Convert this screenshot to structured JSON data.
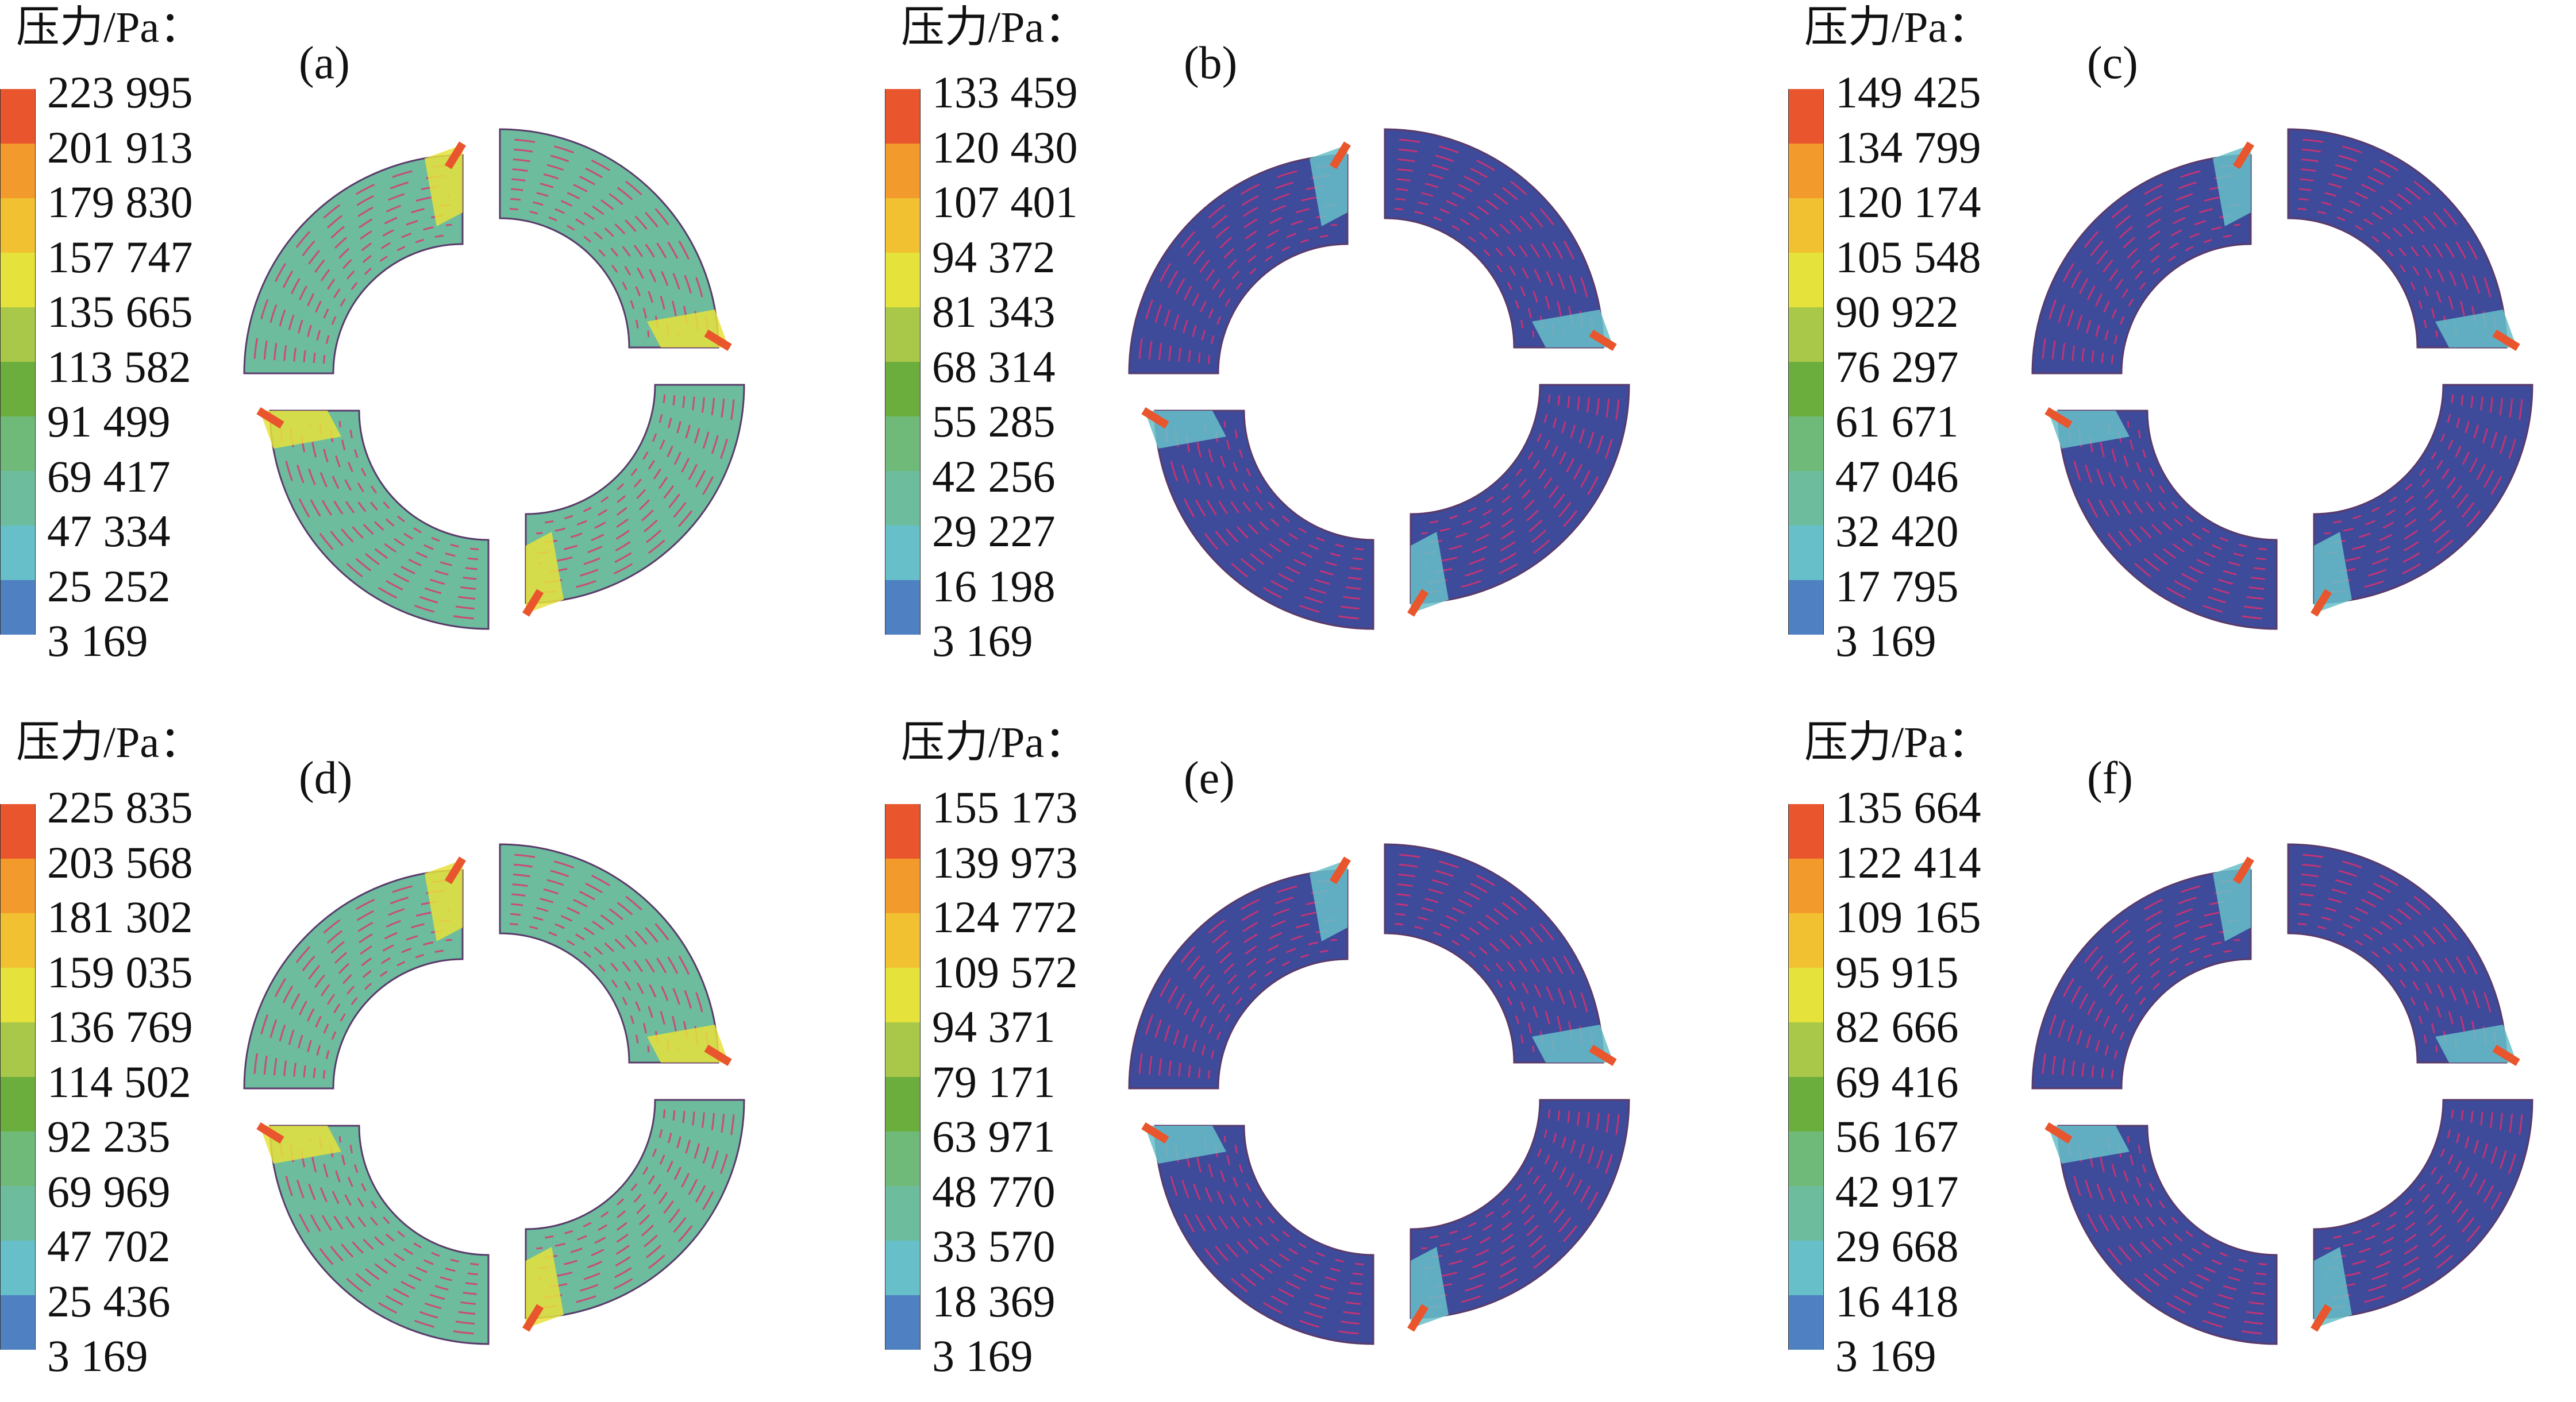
{
  "legend_colors": [
    "#3e4a9a",
    "#4f81c2",
    "#67c0c9",
    "#6dbc9e",
    "#6fb979",
    "#6cae3e",
    "#a9c84a",
    "#e6e23c",
    "#f1c132",
    "#f29a2b",
    "#e9552c"
  ],
  "panels": [
    {
      "label": "(a)",
      "title": "压力/Pa：",
      "ticks": [
        "223 995",
        "201 913",
        "179 830",
        "157 747",
        "135 665",
        "113 582",
        "91 499",
        "69 417",
        "47 334",
        "25 252",
        "3 169"
      ],
      "scheme": "green"
    },
    {
      "label": "(b)",
      "title": "压力/Pa：",
      "ticks": [
        "133 459",
        "120 430",
        "107 401",
        "94 372",
        "81 343",
        "68 314",
        "55 285",
        "42 256",
        "29 227",
        "16 198",
        "3 169"
      ],
      "scheme": "blue"
    },
    {
      "label": "(c)",
      "title": "压力/Pa：",
      "ticks": [
        "149 425",
        "134 799",
        "120 174",
        "105 548",
        "90 922",
        "76 297",
        "61 671",
        "47 046",
        "32 420",
        "17 795",
        "3 169"
      ],
      "scheme": "blue"
    },
    {
      "label": "(d)",
      "title": "压力/Pa：",
      "ticks": [
        "225 835",
        "203 568",
        "181 302",
        "159 035",
        "136 769",
        "114 502",
        "92 235",
        "69 969",
        "47 702",
        "25 436",
        "3 169"
      ],
      "scheme": "green"
    },
    {
      "label": "(e)",
      "title": "压力/Pa：",
      "ticks": [
        "155 173",
        "139 973",
        "124 772",
        "109 572",
        "94 371",
        "79 171",
        "63 971",
        "48 770",
        "33 570",
        "18 369",
        "3 169"
      ],
      "scheme": "blue"
    },
    {
      "label": "(f)",
      "title": "压力/Pa：",
      "ticks": [
        "135 664",
        "122 414",
        "109 165",
        "95 915",
        "82 666",
        "69 416",
        "56 167",
        "42 917",
        "29 668",
        "16 418",
        "3 169"
      ],
      "scheme": "blue"
    }
  ]
}
